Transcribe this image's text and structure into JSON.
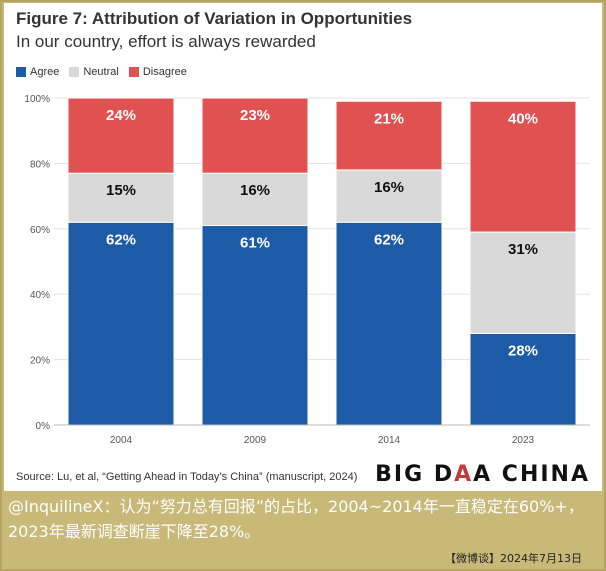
{
  "figure": {
    "title": "Figure 7: Attribution of Variation in Opportunities",
    "subtitle": "In our country, effort is always rewarded",
    "source": "Source: Lu, et al, “Getting Ahead in Today’s China” (manuscript, 2024)"
  },
  "brand": {
    "text_left": "BIG D",
    "text_mid": "A",
    "text_right": "A CHINA"
  },
  "caption": "@InquilineX：认为“努力总有回报”的占比，2004~2014年一直稳定在60%+，2023年最新调查断崖下降至28%。",
  "footer": "【微博谈】2024年7月13日",
  "colors": {
    "agree": "#1d5ba6",
    "neutral": "#d9d9d9",
    "disagree": "#e05151"
  },
  "chart_data": {
    "type": "bar",
    "stacked": true,
    "categories": [
      "2004",
      "2009",
      "2014",
      "2023"
    ],
    "series": [
      {
        "name": "Agree",
        "values": [
          62,
          61,
          62,
          28
        ]
      },
      {
        "name": "Neutral",
        "values": [
          15,
          16,
          16,
          31
        ]
      },
      {
        "name": "Disagree",
        "values": [
          24,
          23,
          21,
          40
        ]
      }
    ],
    "ylim": [
      0,
      100
    ],
    "yticks": [
      "0%",
      "20%",
      "40%",
      "60%",
      "80%",
      "100%"
    ],
    "legend": "top-left",
    "grid": true
  }
}
